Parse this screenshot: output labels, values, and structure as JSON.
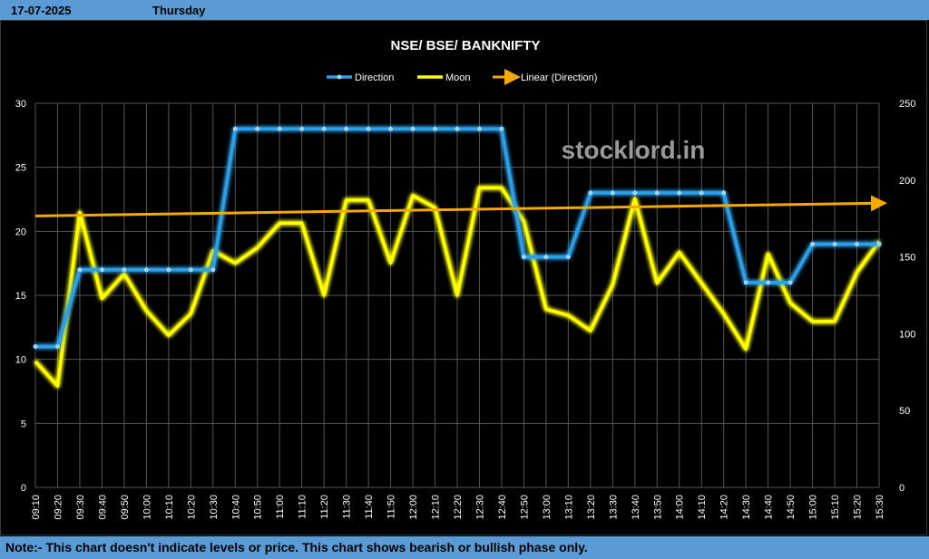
{
  "header": {
    "date": "17-07-2025",
    "day": "Thursday"
  },
  "footer": {
    "note": "Note:- This chart doesn't indicate levels or price. This chart shows bearish or bullish phase only."
  },
  "chart_data": {
    "type": "line",
    "title": "NSE/ BSE/ BANKNIFTY",
    "watermark": "stocklord.in",
    "x": [
      "09:10",
      "09:20",
      "09:30",
      "09:40",
      "09:50",
      "10:00",
      "10:10",
      "10:20",
      "10:30",
      "10:40",
      "10:50",
      "11:00",
      "11:10",
      "11:20",
      "11:30",
      "11:40",
      "11:50",
      "12:00",
      "12:10",
      "12:20",
      "12:30",
      "12:40",
      "12:50",
      "13:00",
      "13:10",
      "13:20",
      "13:30",
      "13:40",
      "13:50",
      "14:00",
      "14:10",
      "14:20",
      "14:30",
      "14:40",
      "14:50",
      "15:00",
      "15:10",
      "15:20",
      "15:30"
    ],
    "y_left": {
      "min": 0,
      "max": 30,
      "ticks": [
        "0",
        "5",
        "10",
        "15",
        "20",
        "25",
        "30"
      ]
    },
    "y_right": {
      "min": 0,
      "max": 250,
      "ticks": [
        "0",
        "50",
        "100",
        "150",
        "200",
        "250"
      ]
    },
    "grid": true,
    "legend_position": "top",
    "series": [
      {
        "name": "Direction",
        "axis": "left",
        "color": "#2e9fe6",
        "values": [
          11,
          11,
          17,
          17,
          17,
          17,
          17,
          17,
          17,
          28,
          28,
          28,
          28,
          28,
          28,
          28,
          28,
          28,
          28,
          28,
          28,
          28,
          18,
          18,
          18,
          23,
          23,
          23,
          23,
          23,
          23,
          23,
          16,
          16,
          16,
          19,
          19,
          19,
          19
        ]
      },
      {
        "name": "Moon",
        "axis": "right",
        "color": "#ffff00",
        "values": [
          82,
          66,
          179,
          123,
          139,
          115,
          99,
          113,
          154,
          146,
          156,
          172,
          172,
          125,
          187,
          187,
          146,
          190,
          182,
          125,
          195,
          195,
          173,
          116,
          112,
          102,
          132,
          188,
          133,
          153,
          133,
          113,
          90,
          152,
          120,
          108,
          108,
          140,
          160
        ]
      },
      {
        "name": "Linear (Direction)",
        "axis": "left",
        "color": "#f5a800",
        "trend_start": 21.2,
        "trend_end": 22.2
      }
    ]
  }
}
